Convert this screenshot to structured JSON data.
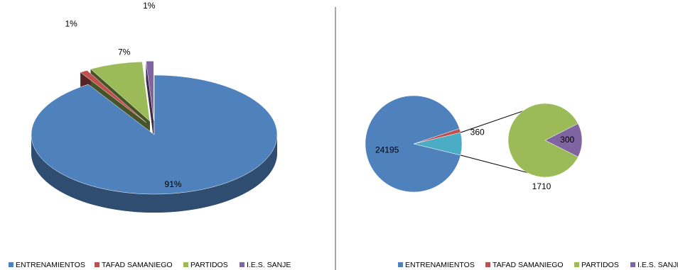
{
  "chart_data": [
    {
      "type": "pie3d",
      "categories": [
        "ENTRENAMIENTOS",
        "TAFAD SAMANIEGO",
        "PARTIDOS",
        "I.E.S. SANJE"
      ],
      "values": [
        91,
        1,
        7,
        1
      ],
      "value_labels": [
        "91%",
        "1%",
        "7%",
        "1%"
      ],
      "colors": [
        "#4f81bd",
        "#c0504d",
        "#9bbb59",
        "#8064a2"
      ],
      "legend": "bottom"
    },
    {
      "type": "pieofpie",
      "categories": [
        "ENTRENAMIENTOS",
        "TAFAD SAMANIEGO",
        "PARTIDOS",
        "I.E.S. SANJE"
      ],
      "values": [
        24195,
        360,
        1710,
        300
      ],
      "colors": [
        "#4f81bd",
        "#c0504d",
        "#9bbb59",
        "#8064a2"
      ],
      "other_color": "#4bacc6",
      "secondary_count": 2,
      "legend": "bottom"
    }
  ]
}
